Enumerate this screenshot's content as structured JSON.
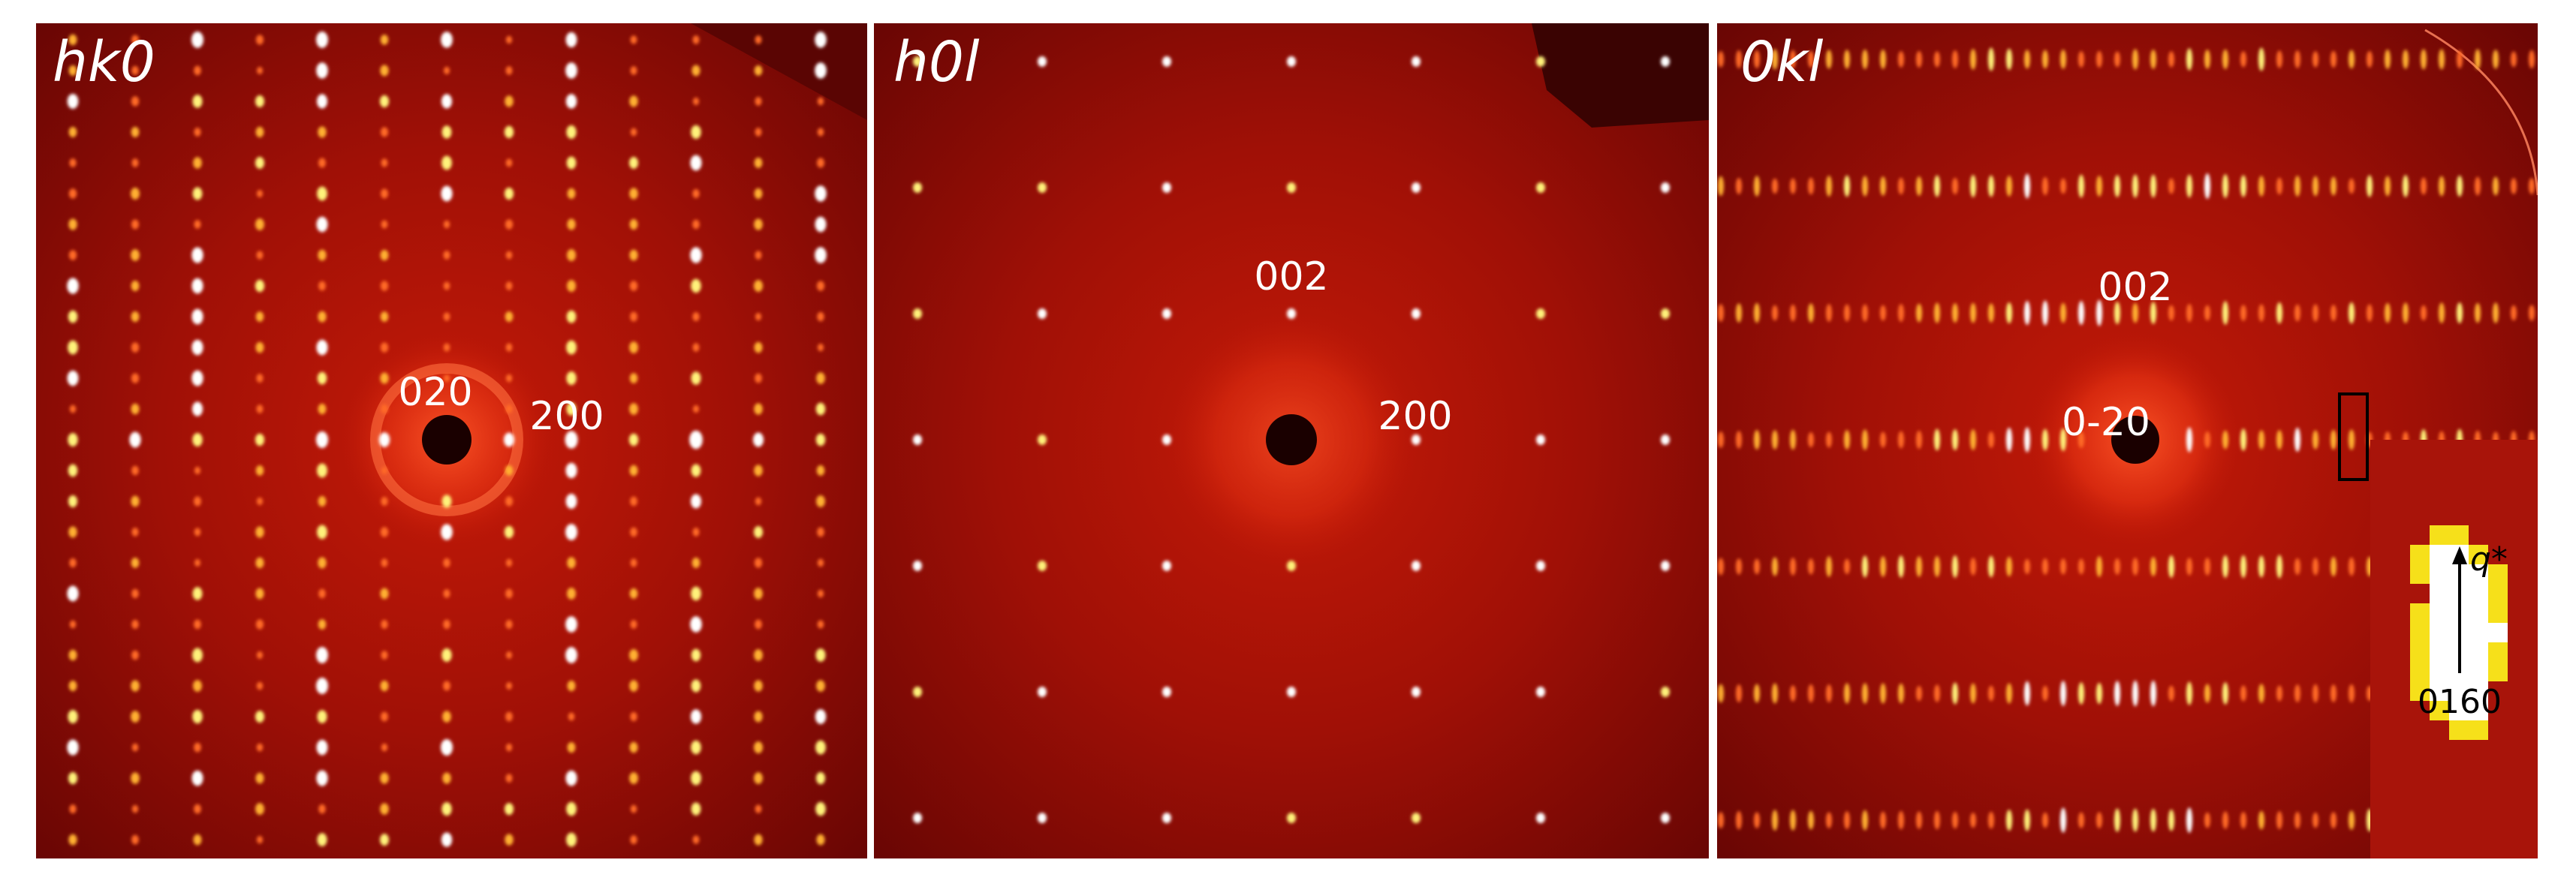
{
  "panels": [
    {
      "title": "hk0",
      "labels": [
        "020",
        "200"
      ]
    },
    {
      "title": "h0l",
      "labels": [
        "002",
        "200"
      ]
    },
    {
      "title": "0kl",
      "labels": [
        "002",
        "0-20"
      ]
    }
  ],
  "inset": {
    "axis_label": "q*",
    "reflection": "0160"
  }
}
